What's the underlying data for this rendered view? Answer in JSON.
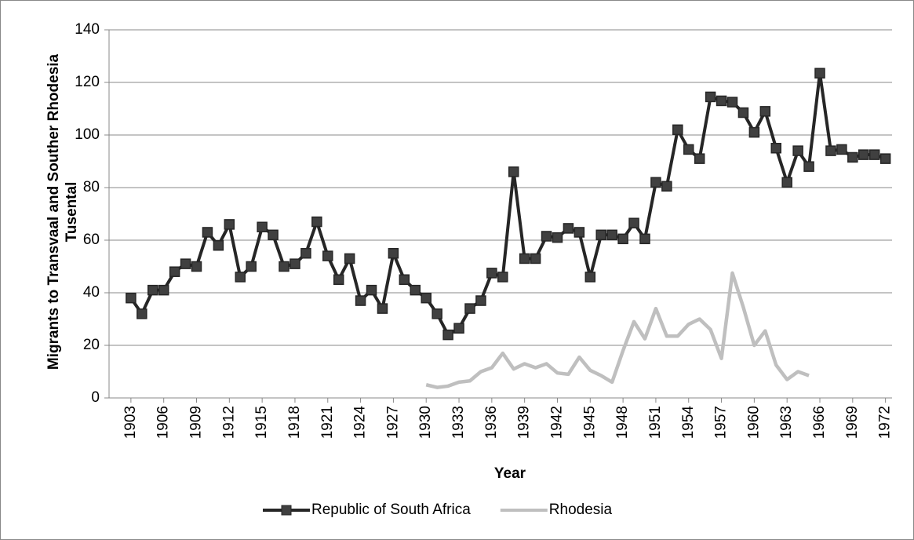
{
  "chart_data": {
    "type": "line",
    "xlabel": "Year",
    "ylabel": "Migrants to Transvaal and Souther Rhodesia Tusental",
    "x": [
      1903,
      1904,
      1905,
      1906,
      1907,
      1908,
      1909,
      1910,
      1911,
      1912,
      1913,
      1914,
      1915,
      1916,
      1917,
      1918,
      1919,
      1920,
      1921,
      1922,
      1923,
      1924,
      1925,
      1926,
      1927,
      1928,
      1929,
      1930,
      1931,
      1932,
      1933,
      1934,
      1935,
      1936,
      1937,
      1938,
      1939,
      1940,
      1941,
      1942,
      1943,
      1944,
      1945,
      1946,
      1947,
      1948,
      1949,
      1950,
      1951,
      1952,
      1953,
      1954,
      1955,
      1956,
      1957,
      1958,
      1959,
      1960,
      1961,
      1962,
      1963,
      1964,
      1965,
      1966,
      1967,
      1968,
      1969,
      1970,
      1971,
      1972
    ],
    "series": [
      {
        "name": "Republic of South Africa",
        "color": "#262626",
        "marker": "square",
        "values": [
          38,
          32,
          41,
          41,
          48,
          51,
          50,
          63,
          58,
          66,
          46,
          50,
          65,
          62,
          50,
          51,
          55,
          67,
          54,
          45,
          53,
          37,
          41,
          34,
          55,
          45,
          41,
          38,
          32,
          24,
          26.5,
          34,
          37,
          47.5,
          46,
          86,
          53,
          53,
          61.5,
          61,
          64.5,
          63,
          46,
          62,
          62,
          60.5,
          66.5,
          60.5,
          82,
          80.5,
          102,
          94.5,
          91,
          114.5,
          113,
          112.5,
          108.5,
          101,
          109,
          95,
          82,
          94,
          88,
          123.5,
          94,
          94.5,
          91.5,
          92.5,
          92.5,
          91
        ]
      },
      {
        "name": "Rhodesia",
        "color": "#bfbfbf",
        "marker": "none",
        "values": [
          null,
          null,
          null,
          null,
          null,
          null,
          null,
          null,
          null,
          null,
          null,
          null,
          null,
          null,
          null,
          null,
          null,
          null,
          null,
          null,
          null,
          null,
          null,
          null,
          null,
          null,
          null,
          5,
          4,
          4.5,
          6,
          6.5,
          10,
          11.5,
          17,
          11,
          13,
          11.5,
          13,
          9.5,
          9,
          15.5,
          10.5,
          8.5,
          6,
          18,
          29,
          22.5,
          34,
          23.5,
          23.5,
          28,
          30,
          26,
          15,
          47.5,
          34.5,
          20,
          25.5,
          12.5,
          7,
          10,
          8.5,
          null,
          null,
          null,
          null,
          null,
          null,
          null
        ]
      }
    ],
    "xlim": [
      1901,
      1972.6
    ],
    "xticks": [
      1903,
      1906,
      1909,
      1912,
      1915,
      1918,
      1921,
      1924,
      1927,
      1930,
      1933,
      1936,
      1939,
      1942,
      1945,
      1948,
      1951,
      1954,
      1957,
      1960,
      1963,
      1966,
      1969,
      1972
    ],
    "ylim": [
      0,
      140
    ],
    "yticks": [
      0,
      20,
      40,
      60,
      80,
      100,
      120,
      140
    ],
    "grid": true,
    "legend": "bottom"
  }
}
